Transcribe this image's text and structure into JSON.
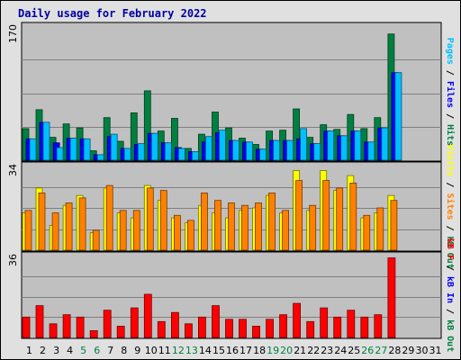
{
  "chart_data": {
    "type": "bar",
    "title": "Daily usage for February 2022",
    "x": [
      "1",
      "2",
      "3",
      "4",
      "5",
      "6",
      "7",
      "8",
      "9",
      "10",
      "11",
      "12",
      "13",
      "14",
      "15",
      "16",
      "17",
      "18",
      "19",
      "20",
      "21",
      "22",
      "23",
      "24",
      "25",
      "26",
      "27",
      "28",
      "29",
      "30",
      "31"
    ],
    "weekend_days": [
      "5",
      "6",
      "12",
      "13",
      "19",
      "20",
      "26",
      "27"
    ],
    "panels": [
      {
        "id": "hits-files-pages",
        "ymax": 170,
        "ymax_label": "170",
        "side_labels": [
          {
            "text": "Pages",
            "color": "#00c0ff"
          },
          {
            "text": " / ",
            "color": "#000000"
          },
          {
            "text": "Files",
            "color": "#0000ff"
          },
          {
            "text": " / ",
            "color": "#000000"
          },
          {
            "text": "Hits",
            "color": "#008040"
          }
        ],
        "series": [
          {
            "name": "Hits",
            "color": "#008040",
            "values": [
              40,
              64,
              29,
              46,
              41,
              12,
              54,
              24,
              60,
              88,
              37,
              53,
              15,
              33,
              61,
              41,
              28,
              20,
              37,
              38,
              65,
              29,
              45,
              39,
              58,
              40,
              54,
              160
            ]
          },
          {
            "name": "Files",
            "color": "#0000ff",
            "values": [
              27,
              48,
              22,
              28,
              27,
              7,
              30,
              15,
              20,
              34,
              22,
              16,
              11,
              23,
              35,
              25,
              23,
              14,
              25,
              25,
              27,
              21,
              37,
              31,
              37,
              23,
              41,
              111
            ]
          },
          {
            "name": "Pages",
            "color": "#00c0ff",
            "values": [
              27,
              48,
              16,
              28,
              27,
              7,
              33,
              15,
              21,
              34,
              22,
              15,
              11,
              30,
              38,
              25,
              23,
              14,
              25,
              25,
              40,
              21,
              37,
              31,
              37,
              23,
              41,
              111
            ]
          }
        ]
      },
      {
        "id": "visits-sites",
        "ymax": 34,
        "ymax_label": "34",
        "side_labels": [
          {
            "text": "Visits",
            "color": "#ffff00"
          },
          {
            "text": " / ",
            "color": "#000000"
          },
          {
            "text": "Sites",
            "color": "#ff8000"
          },
          {
            "text": " / ",
            "color": "#000000"
          },
          {
            "text": "KB Out",
            "color": "#008040"
          }
        ],
        "series": [
          {
            "name": "Visits",
            "color": "#ffff00",
            "values": [
              15,
              25,
              10,
              18,
              22,
              7,
              25,
              15,
              13,
              26,
              20,
              13,
              11,
              18,
              15,
              13,
              16,
              17,
              22,
              15,
              32,
              16,
              32,
              24,
              30,
              13,
              15,
              22
            ]
          },
          {
            "name": "Sites",
            "color": "#ff8000",
            "values": [
              16,
              23,
              15,
              19,
              21,
              8,
              26,
              16,
              16,
              25,
              24,
              14,
              12,
              23,
              20,
              19,
              18,
              19,
              23,
              16,
              28,
              18,
              28,
              25,
              27,
              14,
              17,
              20
            ]
          }
        ]
      },
      {
        "id": "kbytes",
        "ymax": 36,
        "ymax_label": "36",
        "side_labels": [
          {
            "text": "kB F",
            "color": "#ff0000"
          },
          {
            "text": " / ",
            "color": "#000000"
          },
          {
            "text": "kB In",
            "color": "#0000ff"
          },
          {
            "text": " / ",
            "color": "#000000"
          },
          {
            "text": "kB Out",
            "color": "#008040"
          }
        ],
        "series": [
          {
            "name": "kB F",
            "color": "#ff0000",
            "values": [
              9,
              14,
              6,
              10,
              9,
              3,
              12,
              5,
              13,
              19,
              7,
              11,
              6,
              9,
              14,
              8,
              8,
              5,
              8,
              10,
              15,
              7,
              13,
              9,
              12,
              9,
              10,
              35
            ]
          }
        ]
      }
    ]
  }
}
